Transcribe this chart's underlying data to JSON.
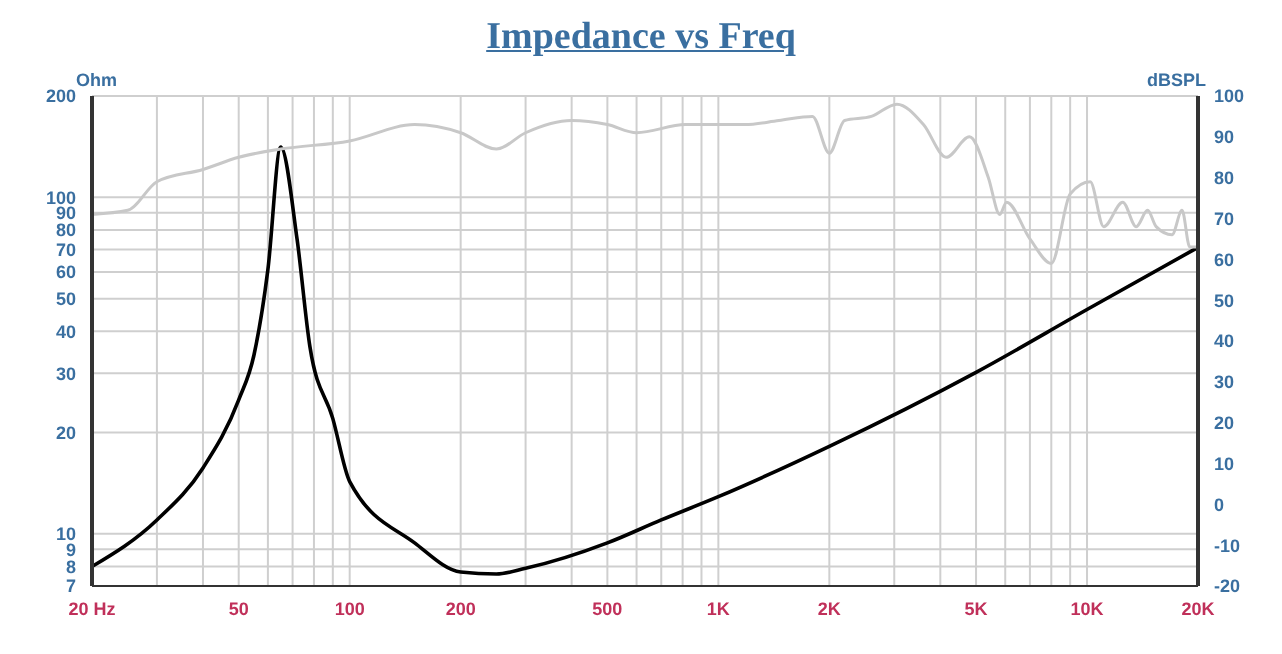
{
  "chart_data": {
    "type": "line",
    "title": "Impedance vs Freq",
    "ylabel": "Ohm",
    "y2label": "dBSPL",
    "log": "xy",
    "grid": true,
    "legend": false,
    "marker": "none",
    "line_style": "solid",
    "xlim": [
      20,
      20000
    ],
    "xticks": [
      {
        "value": 20,
        "label": "20  Hz"
      },
      {
        "value": 30,
        "label": null
      },
      {
        "value": 40,
        "label": null
      },
      50,
      {
        "value": 60,
        "label": null
      },
      {
        "value": 70,
        "label": null
      },
      {
        "value": 80,
        "label": null
      },
      {
        "value": 90,
        "label": null
      },
      100,
      200,
      {
        "value": 300,
        "label": null
      },
      {
        "value": 400,
        "label": null
      },
      500,
      {
        "value": 600,
        "label": null
      },
      {
        "value": 700,
        "label": null
      },
      {
        "value": 800,
        "label": null
      },
      {
        "value": 900,
        "label": null
      },
      {
        "value": 1000,
        "label": "1K"
      },
      {
        "value": 2000,
        "label": "2K"
      },
      {
        "value": 3000,
        "label": null
      },
      {
        "value": 4000,
        "label": null
      },
      {
        "value": 5000,
        "label": "5K"
      },
      {
        "value": 6000,
        "label": null
      },
      {
        "value": 7000,
        "label": null
      },
      {
        "value": 8000,
        "label": null
      },
      {
        "value": 9000,
        "label": null
      },
      {
        "value": 10000,
        "label": "10K"
      },
      {
        "value": 20000,
        "label": "20K"
      }
    ],
    "ylim": [
      7,
      200
    ],
    "yticks": [
      7,
      8,
      9,
      10,
      20,
      30,
      40,
      50,
      60,
      70,
      80,
      90,
      100,
      200
    ],
    "y2lim": [
      -20,
      100
    ],
    "y2ticks": [
      -20,
      -10,
      0,
      10,
      20,
      30,
      40,
      50,
      60,
      70,
      80,
      90,
      100
    ],
    "series": [
      {
        "color": "#000000",
        "x": [
          20,
          30,
          40,
          50,
          55,
          60,
          65,
          72,
          78,
          90,
          100,
          150,
          200,
          250,
          300,
          500,
          700,
          1000,
          2000,
          5000,
          10000,
          20000
        ],
        "values": [
          8,
          11,
          15.7,
          25,
          34,
          61,
          141,
          75,
          36,
          22,
          14.3,
          9.4,
          7.7,
          7.6,
          7.9,
          9.4,
          11,
          12.9,
          18.2,
          30.2,
          46.4,
          71
        ]
      },
      {
        "color": "#c8c8c8",
        "axis": "y2",
        "x": [
          20,
          25,
          30,
          40,
          50,
          65,
          100,
          150,
          200,
          250,
          300,
          400,
          500,
          600,
          815,
          1180,
          1460,
          1800,
          2000,
          2200,
          2600,
          3050,
          3600,
          4150,
          4800,
          5400,
          5800,
          6050,
          7000,
          8000,
          9000,
          10200,
          11100,
          12500,
          13600,
          14600,
          15400,
          17000,
          18100,
          19000,
          20000
        ],
        "values": [
          71,
          72,
          79,
          82,
          85,
          87,
          89,
          93,
          91,
          87,
          91,
          94,
          93,
          91,
          93,
          93,
          94,
          95,
          86,
          94,
          95,
          98,
          93,
          85,
          90,
          80,
          71,
          74,
          65,
          59,
          76,
          79,
          68,
          74,
          68,
          72,
          68,
          66,
          72,
          63,
          63
        ]
      }
    ]
  }
}
